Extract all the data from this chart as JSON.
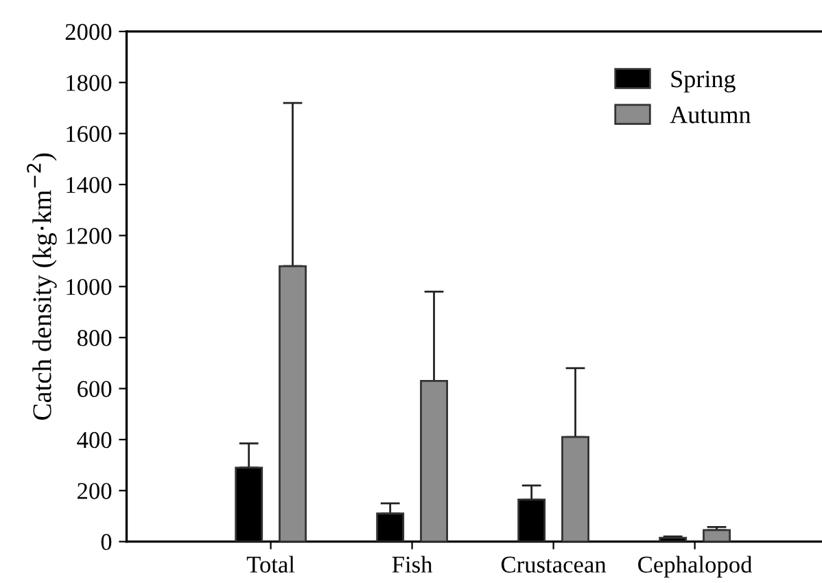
{
  "chart_data": {
    "type": "bar",
    "ylabel": "Catch density (kg·km$^{−2}$)",
    "categories": [
      "Total",
      "Fish",
      "Crustacean",
      "Cephalopod"
    ],
    "series": [
      {
        "name": "Spring",
        "color": "#000000",
        "values": [
          290,
          110,
          165,
          15
        ],
        "errors": [
          [
            290,
            385
          ],
          [
            110,
            150
          ],
          [
            165,
            220
          ],
          [
            15,
            20
          ]
        ]
      },
      {
        "name": "Autumn",
        "color": "#8c8c8c",
        "values": [
          1080,
          630,
          410,
          45
        ],
        "errors": [
          [
            1080,
            1720
          ],
          [
            630,
            980
          ],
          [
            410,
            680
          ],
          [
            45,
            57
          ]
        ]
      }
    ],
    "ylim": [
      0,
      2000
    ],
    "yticks": [
      0,
      200,
      400,
      600,
      800,
      1000,
      1200,
      1400,
      1600,
      1800,
      2000
    ],
    "grid": false,
    "legend": "top right"
  }
}
